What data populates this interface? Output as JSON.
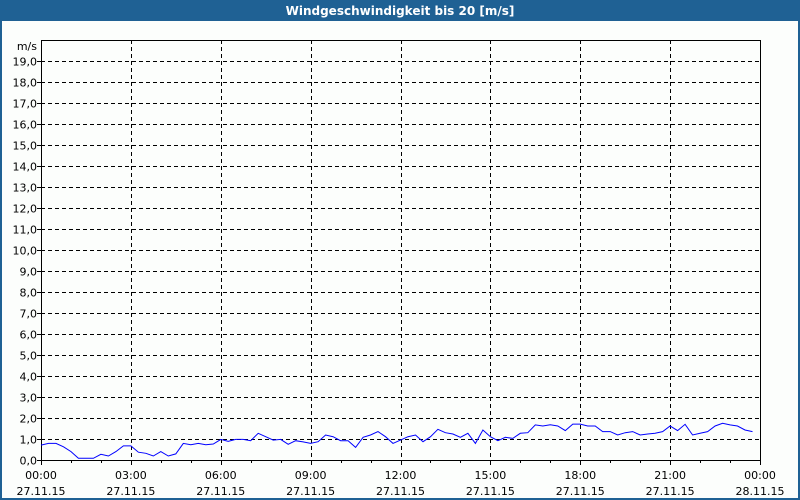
{
  "chart_data": {
    "type": "line",
    "title": "Windgeschwindigkeit bis 20 [m/s]",
    "ylabel": "m/s",
    "ylim": [
      0,
      20
    ],
    "ytick_labels": [
      "0,0",
      "1,0",
      "2,0",
      "3,0",
      "4,0",
      "5,0",
      "6,0",
      "7,0",
      "8,0",
      "9,0",
      "10,0",
      "11,0",
      "12,0",
      "13,0",
      "14,0",
      "15,0",
      "16,0",
      "17,0",
      "18,0",
      "19,0"
    ],
    "xlim": [
      "27.11.15 00:00",
      "28.11.15 00:00"
    ],
    "xtick_labels": [
      {
        "time": "00:00",
        "date": "27.11.15"
      },
      {
        "time": "03:00",
        "date": "27.11.15"
      },
      {
        "time": "06:00",
        "date": "27.11.15"
      },
      {
        "time": "09:00",
        "date": "27.11.15"
      },
      {
        "time": "12:00",
        "date": "27.11.15"
      },
      {
        "time": "15:00",
        "date": "27.11.15"
      },
      {
        "time": "18:00",
        "date": "27.11.15"
      },
      {
        "time": "21:00",
        "date": "27.11.15"
      },
      {
        "time": "00:00",
        "date": "28.11.15"
      }
    ],
    "grid": true,
    "line_color": "#0000ff",
    "series": [
      {
        "x_start": "27.11.15 00:00",
        "x_step_minutes": 15,
        "values": [
          0.71,
          0.79,
          0.79,
          0.63,
          0.4,
          0.08,
          0.08,
          0.08,
          0.27,
          0.19,
          0.4,
          0.67,
          0.67,
          0.37,
          0.32,
          0.19,
          0.4,
          0.19,
          0.29,
          0.79,
          0.73,
          0.79,
          0.73,
          0.76,
          0.98,
          0.89,
          0.98,
          0.98,
          0.92,
          1.27,
          1.11,
          0.95,
          0.98,
          0.75,
          0.92,
          0.86,
          0.79,
          0.87,
          1.19,
          1.11,
          0.92,
          0.92,
          0.6,
          1.08,
          1.19,
          1.35,
          1.11,
          0.79,
          0.95,
          1.11,
          1.19,
          0.87,
          1.11,
          1.46,
          1.3,
          1.24,
          1.08,
          1.27,
          0.79,
          1.43,
          1.11,
          0.92,
          1.08,
          1.03,
          1.27,
          1.3,
          1.67,
          1.62,
          1.68,
          1.62,
          1.4,
          1.71,
          1.71,
          1.62,
          1.62,
          1.35,
          1.35,
          1.19,
          1.3,
          1.35,
          1.19,
          1.24,
          1.27,
          1.35,
          1.62,
          1.4,
          1.7,
          1.19,
          1.27,
          1.35,
          1.62,
          1.75,
          1.67,
          1.62,
          1.43,
          1.35
        ]
      }
    ]
  },
  "colors": {
    "titlebar": "#1f6194",
    "line": "#0000ff"
  }
}
